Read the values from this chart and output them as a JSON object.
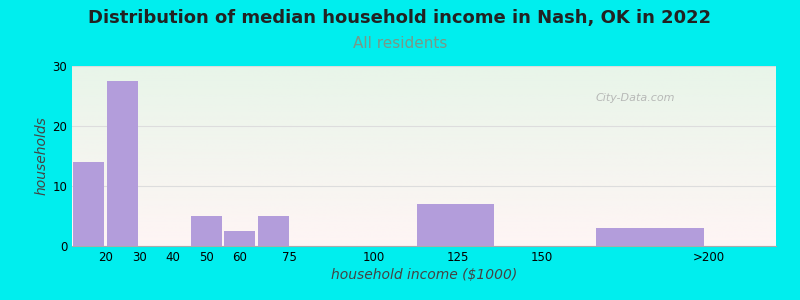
{
  "title": "Distribution of median household income in Nash, OK in 2022",
  "subtitle": "All residents",
  "xlabel": "household income ($1000)",
  "ylabel": "households",
  "title_fontsize": 13,
  "subtitle_fontsize": 11,
  "subtitle_color": "#779988",
  "ylabel_fontsize": 10,
  "xlabel_fontsize": 10,
  "categories": [
    "20",
    "30",
    "40",
    "50",
    "60",
    "75",
    "100",
    "125",
    "150",
    ">200"
  ],
  "bar_lefts": [
    10,
    20,
    40,
    45,
    55,
    65,
    87.5,
    112,
    137,
    165
  ],
  "bar_widths": [
    10,
    10,
    5,
    10,
    10,
    10,
    12.5,
    25,
    13,
    35
  ],
  "values": [
    14,
    27.5,
    0,
    5,
    2.5,
    5,
    0,
    7,
    0,
    3
  ],
  "bar_color": "#b39ddb",
  "xlim": [
    10,
    220
  ],
  "xtick_positions": [
    20,
    30,
    40,
    50,
    60,
    75,
    100,
    125,
    150,
    200
  ],
  "xtick_labels": [
    "20",
    "30",
    "40",
    "50",
    "60",
    "75",
    "100",
    "125",
    "150",
    ">200"
  ],
  "ylim": [
    0,
    30
  ],
  "yticks": [
    0,
    10,
    20,
    30
  ],
  "background_color": "#00eeee",
  "plot_bg_top_color": "#e8f5e9",
  "plot_bg_bottom_color": "#fff5f5",
  "watermark": "City-Data.com",
  "grid_color": "#dddddd"
}
